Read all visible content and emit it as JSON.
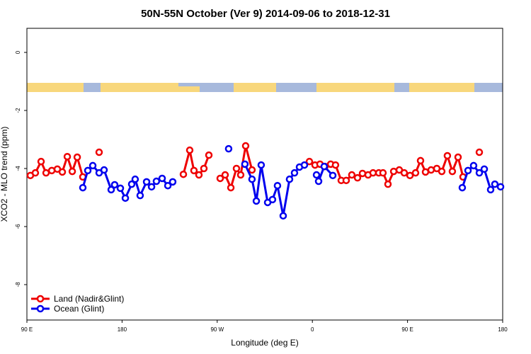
{
  "chart_data": {
    "type": "line",
    "title": "50N-55N October (Ver 9)   2014-09-06 to 2018-12-31",
    "x_label": "Longitude (deg E)",
    "y_label": "XCO2 - MLO trend (ppm)",
    "xlim": [
      90,
      540
    ],
    "ylim": [
      -9.22,
      0.83
    ],
    "xticks": [
      {
        "value": 90,
        "label": "90 E"
      },
      {
        "value": 180,
        "label": "180"
      },
      {
        "value": 270,
        "label": "90 W"
      },
      {
        "value": 360,
        "label": "0"
      },
      {
        "value": 450,
        "label": "90 E"
      },
      {
        "value": 540,
        "label": "180"
      }
    ],
    "yticks": [
      0,
      -2,
      -4,
      -6,
      -8
    ],
    "legend": "bottom-left",
    "series": [
      {
        "name": "Land (Nadir&Glint)",
        "color": "#ee0000",
        "x": [
          93.3,
          98.0,
          103.4,
          108.1,
          113.5,
          118.8,
          123.5,
          128.2,
          132.9,
          137.6,
          142.9,
          151.6,
          158.3,
          200,
          238.0,
          244.0,
          248.0,
          252.7,
          257.4,
          262.1,
          265,
          272.8,
          277.5,
          282.9,
          288.2,
          292.2,
          296.9,
          302.9,
          330,
          357.2,
          362.5,
          367.2,
          371.9,
          377.3,
          381.9,
          387.3,
          392.0,
          397.3,
          402.7,
          407.4,
          412.7,
          417.4,
          422.8,
          426.8,
          431.5,
          436.9,
          442.2,
          446.9,
          452.3,
          457.6,
          462.3,
          467.0,
          472.3,
          477.7,
          482.4,
          487.7,
          492.4,
          497.8,
          502.5,
          507,
          517.9
        ],
        "values": [
          -4.24,
          -4.15,
          -3.76,
          -4.15,
          -4.07,
          -4.02,
          -4.12,
          -3.59,
          -4.1,
          -3.61,
          -4.29,
          null,
          -3.44,
          null,
          -4.2,
          -3.37,
          -4.07,
          -4.22,
          -4.0,
          -3.54,
          null,
          -4.34,
          -4.22,
          -4.66,
          -4.0,
          -4.22,
          -3.22,
          -4.05,
          null,
          -3.76,
          -3.88,
          -3.85,
          -3.93,
          -3.85,
          -3.88,
          -4.41,
          -4.41,
          -4.22,
          -4.32,
          -4.17,
          -4.22,
          -4.15,
          -4.15,
          -4.15,
          -4.54,
          -4.1,
          -4.05,
          -4.15,
          -4.24,
          -4.15,
          -3.73,
          -4.12,
          -4.05,
          -4.0,
          -4.1,
          -3.56,
          -4.1,
          -3.61,
          -4.29,
          null,
          -3.44
        ]
      },
      {
        "name": "Ocean (Glint)",
        "color": "#0000ee",
        "x": [
          142.9,
          147.6,
          152.3,
          158.3,
          163.0,
          169.7,
          173.0,
          178.4,
          183.1,
          189.1,
          192.4,
          197.1,
          203.2,
          207.9,
          212.5,
          217.9,
          223.3,
          227.9,
          275,
          280.8,
          285,
          296.2,
          302.9,
          307.0,
          311.6,
          317.7,
          322.3,
          327.0,
          332.4,
          338.4,
          343.1,
          347.8,
          352.5,
          355,
          363.9,
          365.9,
          371.2,
          379.3,
          440,
          501.8,
          507.2,
          512.5,
          517.9,
          522.6,
          528.6,
          532.6,
          538.0
        ],
        "values": [
          -4.66,
          -4.07,
          -3.9,
          -4.15,
          -4.05,
          -4.73,
          -4.56,
          -4.68,
          -5.02,
          -4.54,
          -4.37,
          -4.93,
          -4.46,
          -4.63,
          -4.44,
          -4.34,
          -4.59,
          -4.46,
          null,
          -3.32,
          null,
          -3.85,
          -4.37,
          -5.12,
          -3.88,
          -5.17,
          -5.07,
          -4.59,
          -5.63,
          -4.37,
          -4.15,
          -3.95,
          -3.88,
          null,
          -4.22,
          -4.44,
          -3.93,
          -4.24,
          null,
          -4.66,
          -4.07,
          -3.9,
          -4.15,
          -4.02,
          -4.73,
          -4.54,
          -4.63
        ]
      }
    ]
  }
}
